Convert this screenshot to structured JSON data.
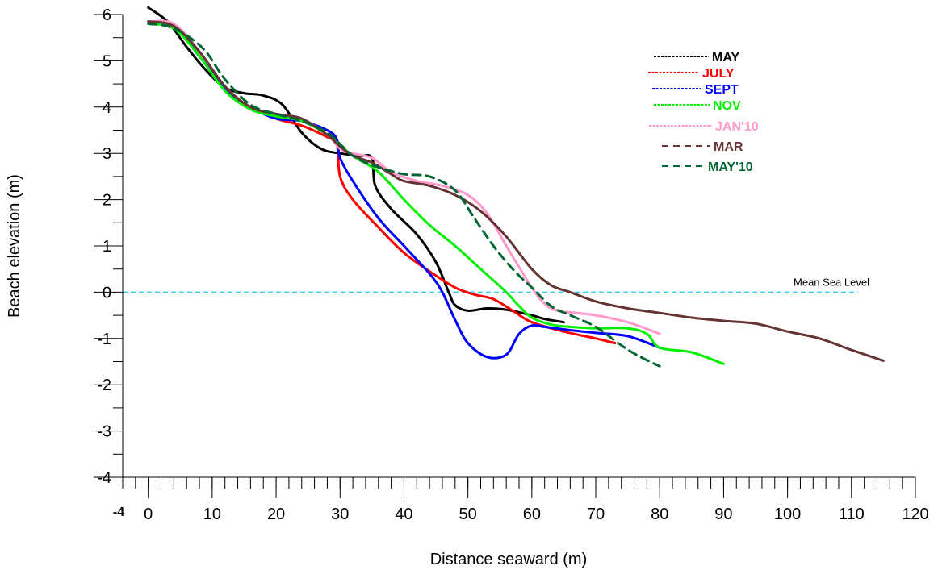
{
  "chart_data": {
    "type": "line",
    "title": "",
    "xlabel": "Distance seaward (m)",
    "ylabel": "Beach elevation (m)",
    "xlim": [
      -4,
      120
    ],
    "ylim": [
      -4,
      6
    ],
    "x_ticks": [
      0,
      10,
      20,
      30,
      40,
      50,
      60,
      70,
      80,
      90,
      100,
      110,
      120
    ],
    "x_tick_labels": [
      "0",
      "10",
      "20",
      "30",
      "40",
      "50",
      "60",
      "70",
      "80",
      "90",
      "100",
      "110",
      "120"
    ],
    "y_ticks": [
      -4,
      -3,
      -2,
      -1,
      0,
      1,
      2,
      3,
      4,
      5,
      6
    ],
    "y_tick_labels": [
      "-4",
      "-3",
      "-2",
      "-1",
      "0",
      "1",
      "2",
      "3",
      "4",
      "5",
      "6"
    ],
    "x_min_label": "-4",
    "grid": false,
    "legend_position": "top-right",
    "reference_line": {
      "y": 0,
      "x_range": [
        -4,
        111
      ],
      "label": "Mean Sea Level",
      "color": "#33ccee"
    },
    "series": [
      {
        "name": "MAY",
        "color": "#000000",
        "dash": "solid",
        "x": [
          0,
          3,
          6,
          9,
          12,
          15,
          18,
          21,
          24,
          27,
          30,
          33,
          35,
          35.5,
          38,
          42,
          45,
          47,
          48,
          50,
          53,
          56,
          60,
          62,
          65
        ],
        "y": [
          6.15,
          5.85,
          5.3,
          4.8,
          4.42,
          4.3,
          4.25,
          4.05,
          3.45,
          3.1,
          3.0,
          2.95,
          2.9,
          2.3,
          1.8,
          1.25,
          0.65,
          0.0,
          -0.28,
          -0.4,
          -0.35,
          -0.38,
          -0.5,
          -0.58,
          -0.65
        ]
      },
      {
        "name": "JULY",
        "color": "#ff0000",
        "dash": "solid",
        "x": [
          0,
          4,
          8,
          12,
          16,
          20,
          24,
          28,
          29.5,
          30,
          32,
          36,
          40,
          44,
          48,
          51,
          54,
          57,
          60,
          65,
          70,
          73
        ],
        "y": [
          5.85,
          5.75,
          5.1,
          4.4,
          4.0,
          3.75,
          3.6,
          3.35,
          3.2,
          2.5,
          2.0,
          1.4,
          0.85,
          0.45,
          0.1,
          -0.05,
          -0.15,
          -0.4,
          -0.65,
          -0.85,
          -1.0,
          -1.1
        ]
      },
      {
        "name": "SEPT",
        "color": "#0000ff",
        "dash": "solid",
        "x": [
          0,
          4,
          8,
          12,
          16,
          20,
          24,
          28,
          29.5,
          30,
          32,
          36,
          40,
          44,
          46,
          48,
          50,
          53,
          56,
          58,
          60,
          62,
          66,
          70,
          75,
          80
        ],
        "y": [
          5.85,
          5.75,
          5.1,
          4.4,
          4.0,
          3.75,
          3.7,
          3.5,
          3.3,
          2.9,
          2.4,
          1.6,
          1.0,
          0.4,
          0.0,
          -0.6,
          -1.1,
          -1.4,
          -1.35,
          -0.9,
          -0.72,
          -0.75,
          -0.82,
          -0.88,
          -0.95,
          -1.2
        ]
      },
      {
        "name": "NOV",
        "color": "#00ee00",
        "dash": "solid",
        "x": [
          0,
          4,
          8,
          12,
          16,
          20,
          24,
          28,
          32,
          36,
          40,
          44,
          48,
          52,
          56,
          58,
          60,
          63,
          66,
          70,
          75,
          78,
          80,
          85,
          90
        ],
        "y": [
          5.8,
          5.7,
          5.1,
          4.35,
          3.95,
          3.8,
          3.7,
          3.4,
          2.95,
          2.6,
          2.0,
          1.45,
          1.0,
          0.5,
          0.0,
          -0.3,
          -0.55,
          -0.7,
          -0.75,
          -0.78,
          -0.78,
          -0.9,
          -1.2,
          -1.3,
          -1.55
        ]
      },
      {
        "name": "JAN'10",
        "color": "#ff99cc",
        "dash": "solid",
        "x": [
          0,
          4,
          8,
          12,
          16,
          20,
          24,
          28,
          30,
          32,
          35,
          38,
          42,
          46,
          50,
          53,
          56,
          60,
          62,
          64,
          67,
          70,
          75,
          80
        ],
        "y": [
          5.85,
          5.8,
          5.2,
          4.45,
          4.0,
          3.85,
          3.75,
          3.4,
          3.1,
          3.0,
          2.9,
          2.6,
          2.4,
          2.3,
          2.1,
          1.7,
          1.0,
          0.1,
          -0.25,
          -0.4,
          -0.45,
          -0.5,
          -0.65,
          -0.9
        ]
      },
      {
        "name": "MAR",
        "color": "#663333",
        "dash": "solid",
        "x": [
          0,
          4,
          8,
          12,
          16,
          20,
          24,
          28,
          30,
          32,
          35,
          38,
          40,
          44,
          48,
          52,
          56,
          60,
          63,
          66,
          70,
          75,
          80,
          85,
          90,
          95,
          100,
          105,
          110,
          115
        ],
        "y": [
          5.85,
          5.75,
          5.2,
          4.45,
          4.0,
          3.85,
          3.75,
          3.4,
          3.15,
          2.95,
          2.8,
          2.55,
          2.4,
          2.3,
          2.1,
          1.75,
          1.2,
          0.5,
          0.15,
          0.0,
          -0.2,
          -0.35,
          -0.45,
          -0.55,
          -0.62,
          -0.68,
          -0.85,
          -1.0,
          -1.25,
          -1.48
        ]
      },
      {
        "name": "MAY'10",
        "color": "#006633",
        "dash": "dashed",
        "x": [
          0,
          3,
          6,
          9,
          12,
          16,
          20,
          24,
          28,
          30,
          32,
          34,
          36,
          40,
          44,
          48,
          51,
          54,
          57,
          60,
          63,
          66,
          70,
          74,
          77,
          80
        ],
        "y": [
          5.8,
          5.75,
          5.55,
          5.2,
          4.6,
          4.05,
          3.85,
          3.7,
          3.45,
          3.2,
          2.95,
          2.8,
          2.7,
          2.55,
          2.5,
          2.2,
          1.6,
          1.0,
          0.5,
          0.1,
          -0.3,
          -0.5,
          -0.75,
          -1.15,
          -1.4,
          -1.6
        ]
      }
    ]
  }
}
